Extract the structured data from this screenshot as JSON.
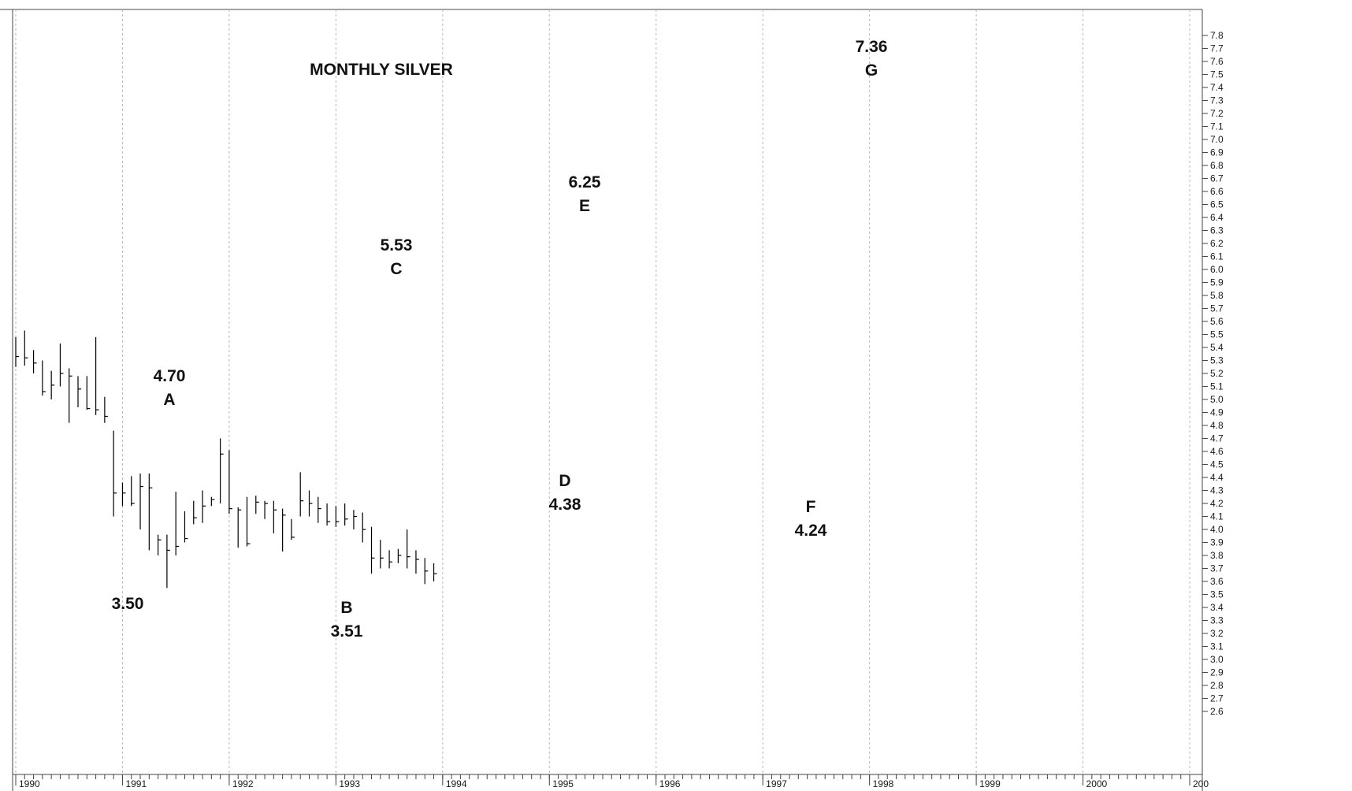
{
  "chart_data": {
    "type": "ohlc",
    "title": "MONTHLY SILVER",
    "xlabel": "",
    "ylabel": "",
    "x_axis": {
      "type": "date",
      "tick_labels": [
        "1990",
        "1991",
        "1992",
        "1993",
        "1994",
        "1995",
        "1996",
        "1997",
        "1998",
        "1999",
        "2000",
        "200"
      ],
      "range": [
        "1990-01",
        "2001-01"
      ]
    },
    "y_axis": {
      "range": [
        2.5,
        7.85
      ],
      "tick_labels": [
        "2.6",
        "2.7",
        "2.8",
        "2.9",
        "3.0",
        "3.1",
        "3.2",
        "3.3",
        "3.4",
        "3.5",
        "3.6",
        "3.7",
        "3.8",
        "3.9",
        "4.0",
        "4.1",
        "4.2",
        "4.3",
        "4.4",
        "4.5",
        "4.6",
        "4.7",
        "4.8",
        "4.9",
        "5.0",
        "5.1",
        "5.2",
        "5.3",
        "5.4",
        "5.5",
        "5.6",
        "5.7",
        "5.8",
        "5.9",
        "6.0",
        "6.1",
        "6.2",
        "6.3",
        "6.4",
        "6.5",
        "6.6",
        "6.7",
        "6.8",
        "6.9",
        "7.0",
        "7.1",
        "7.2",
        "7.3",
        "7.4",
        "7.5",
        "7.6",
        "7.7",
        "7.8"
      ],
      "position": "right"
    },
    "grid": {
      "vertical": "dashed at year boundaries",
      "horizontal": false
    },
    "series": [
      {
        "values": [
          {
            "date": "1990-01",
            "high": 5.48,
            "low": 5.25,
            "close": 5.33
          },
          {
            "date": "1990-02",
            "high": 5.53,
            "low": 5.26,
            "close": 5.32
          },
          {
            "date": "1990-03",
            "high": 5.38,
            "low": 5.2,
            "close": 5.28
          },
          {
            "date": "1990-04",
            "high": 5.3,
            "low": 5.03,
            "close": 5.06
          },
          {
            "date": "1990-05",
            "high": 5.22,
            "low": 5.0,
            "close": 5.11
          },
          {
            "date": "1990-06",
            "high": 5.43,
            "low": 5.1,
            "close": 5.2
          },
          {
            "date": "1990-07",
            "high": 5.24,
            "low": 4.82,
            "close": 5.18
          },
          {
            "date": "1990-08",
            "high": 5.18,
            "low": 4.94,
            "close": 5.08
          },
          {
            "date": "1990-09",
            "high": 5.18,
            "low": 4.92,
            "close": 4.93
          },
          {
            "date": "1990-10",
            "high": 5.48,
            "low": 4.88,
            "close": 4.92
          },
          {
            "date": "1990-11",
            "high": 5.02,
            "low": 4.82,
            "close": 4.87
          },
          {
            "date": "1990-12",
            "high": 4.76,
            "low": 4.1,
            "close": 4.28
          },
          {
            "date": "1991-01",
            "high": 4.36,
            "low": 4.18,
            "close": 4.28
          },
          {
            "date": "1991-02",
            "high": 4.41,
            "low": 4.18,
            "close": 4.2
          },
          {
            "date": "1991-03",
            "high": 4.43,
            "low": 4.0,
            "close": 4.33
          },
          {
            "date": "1991-04",
            "high": 4.43,
            "low": 3.84,
            "close": 4.32
          },
          {
            "date": "1991-05",
            "high": 3.96,
            "low": 3.8,
            "close": 3.92
          },
          {
            "date": "1991-06",
            "high": 3.96,
            "low": 3.55,
            "close": 3.84
          },
          {
            "date": "1991-07",
            "high": 4.29,
            "low": 3.8,
            "close": 3.87
          },
          {
            "date": "1991-08",
            "high": 4.14,
            "low": 3.9,
            "close": 3.93
          },
          {
            "date": "1991-09",
            "high": 4.22,
            "low": 4.04,
            "close": 4.09
          },
          {
            "date": "1991-10",
            "high": 4.3,
            "low": 4.05,
            "close": 4.18
          },
          {
            "date": "1991-11",
            "high": 4.25,
            "low": 4.18,
            "close": 4.23
          },
          {
            "date": "1991-12",
            "high": 4.7,
            "low": 4.2,
            "close": 4.58
          },
          {
            "date": "1992-01",
            "high": 4.61,
            "low": 4.12,
            "close": 4.16
          },
          {
            "date": "1992-02",
            "high": 4.17,
            "low": 3.86,
            "close": 4.15
          },
          {
            "date": "1992-03",
            "high": 4.25,
            "low": 3.87,
            "close": 3.89
          },
          {
            "date": "1992-04",
            "high": 4.26,
            "low": 4.12,
            "close": 4.21
          },
          {
            "date": "1992-05",
            "high": 4.22,
            "low": 4.08,
            "close": 4.2
          },
          {
            "date": "1992-06",
            "high": 4.22,
            "low": 3.97,
            "close": 4.15
          },
          {
            "date": "1992-07",
            "high": 4.16,
            "low": 3.83,
            "close": 4.11
          },
          {
            "date": "1992-08",
            "high": 4.08,
            "low": 3.92,
            "close": 3.94
          },
          {
            "date": "1992-09",
            "high": 4.44,
            "low": 4.1,
            "close": 4.22
          },
          {
            "date": "1992-10",
            "high": 4.3,
            "low": 4.1,
            "close": 4.2
          },
          {
            "date": "1992-11",
            "high": 4.25,
            "low": 4.05,
            "close": 4.16
          },
          {
            "date": "1992-12",
            "high": 4.2,
            "low": 4.03,
            "close": 4.06
          },
          {
            "date": "1993-01",
            "high": 4.18,
            "low": 4.02,
            "close": 4.06
          },
          {
            "date": "1993-02",
            "high": 4.2,
            "low": 4.03,
            "close": 4.08
          },
          {
            "date": "1993-03",
            "high": 4.15,
            "low": 4.0,
            "close": 4.1
          },
          {
            "date": "1993-04",
            "high": 4.13,
            "low": 3.9,
            "close": 4.0
          },
          {
            "date": "1993-05",
            "high": 4.02,
            "low": 3.66,
            "close": 3.78
          },
          {
            "date": "1993-06",
            "high": 3.92,
            "low": 3.7,
            "close": 3.78
          },
          {
            "date": "1993-07",
            "high": 3.84,
            "low": 3.7,
            "close": 3.75
          },
          {
            "date": "1993-08",
            "high": 3.85,
            "low": 3.74,
            "close": 3.8
          },
          {
            "date": "1993-09",
            "high": 4.0,
            "low": 3.7,
            "close": 3.79
          },
          {
            "date": "1993-10",
            "high": 3.84,
            "low": 3.66,
            "close": 3.77
          },
          {
            "date": "1993-11",
            "high": 3.78,
            "low": 3.58,
            "close": 3.68
          },
          {
            "date": "1993-12",
            "high": 3.74,
            "low": 3.6,
            "close": 3.66
          }
        ]
      }
    ],
    "annotations": [
      {
        "label": "4.70",
        "letter": "A"
      },
      {
        "label": "3.50",
        "letter": ""
      },
      {
        "label": "3.51",
        "letter": "B"
      },
      {
        "label": "5.53",
        "letter": "C"
      },
      {
        "label": "4.38",
        "letter": "D"
      },
      {
        "label": "6.25",
        "letter": "E"
      },
      {
        "label": "4.24",
        "letter": "F"
      },
      {
        "label": "7.36",
        "letter": "G"
      }
    ],
    "colors": {
      "bar": "#000000",
      "grid": "#b8b8b8",
      "background": "#ffffff",
      "frame": "#444444"
    }
  }
}
